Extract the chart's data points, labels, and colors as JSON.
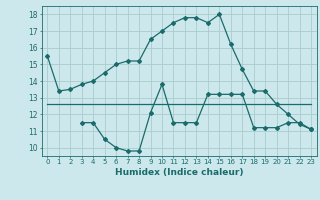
{
  "xlabel": "Humidex (Indice chaleur)",
  "xlim": [
    -0.5,
    23.5
  ],
  "ylim": [
    9.5,
    18.5
  ],
  "yticks": [
    10,
    11,
    12,
    13,
    14,
    15,
    16,
    17,
    18
  ],
  "xticks": [
    0,
    1,
    2,
    3,
    4,
    5,
    6,
    7,
    8,
    9,
    10,
    11,
    12,
    13,
    14,
    15,
    16,
    17,
    18,
    19,
    20,
    21,
    22,
    23
  ],
  "bg_color": "#cce8ec",
  "grid_color": "#aacccc",
  "line_color": "#1a6b6b",
  "line1": {
    "x": [
      0,
      1,
      2,
      3,
      4,
      5,
      6,
      7,
      8,
      9,
      10,
      11,
      12,
      13,
      14,
      15,
      16,
      17,
      18,
      19,
      20,
      21,
      22,
      23
    ],
    "y": [
      15.5,
      13.4,
      13.5,
      13.8,
      14.0,
      14.5,
      15.0,
      15.2,
      15.2,
      16.5,
      17.0,
      17.5,
      17.8,
      17.8,
      17.5,
      18.0,
      16.2,
      14.7,
      13.4,
      13.4,
      12.6,
      12.0,
      11.4,
      11.1
    ]
  },
  "line2": {
    "x": [
      0,
      1,
      2,
      3,
      4,
      5,
      6,
      7,
      8,
      9,
      10,
      11,
      12,
      13,
      14,
      15,
      16,
      17,
      18,
      19,
      20,
      21,
      22,
      23
    ],
    "y": [
      12.6,
      12.6,
      12.6,
      12.6,
      12.6,
      12.6,
      12.6,
      12.6,
      12.6,
      12.6,
      12.6,
      12.6,
      12.6,
      12.6,
      12.6,
      12.6,
      12.6,
      12.6,
      12.6,
      12.6,
      12.6,
      12.6,
      12.6,
      12.6
    ]
  },
  "line3": {
    "x": [
      3,
      4,
      5,
      6,
      7,
      8,
      9,
      10,
      11,
      12,
      13,
      14,
      15,
      16,
      17,
      18,
      19,
      20,
      21,
      22,
      23
    ],
    "y": [
      11.5,
      11.5,
      10.5,
      10.0,
      9.8,
      9.8,
      12.1,
      13.8,
      11.5,
      11.5,
      11.5,
      13.2,
      13.2,
      13.2,
      13.2,
      11.2,
      11.2,
      11.2,
      11.5,
      11.5,
      11.1
    ]
  },
  "xtick_fontsize": 5.0,
  "ytick_fontsize": 5.5,
  "xlabel_fontsize": 6.5,
  "lw": 0.9,
  "ms": 2.0
}
